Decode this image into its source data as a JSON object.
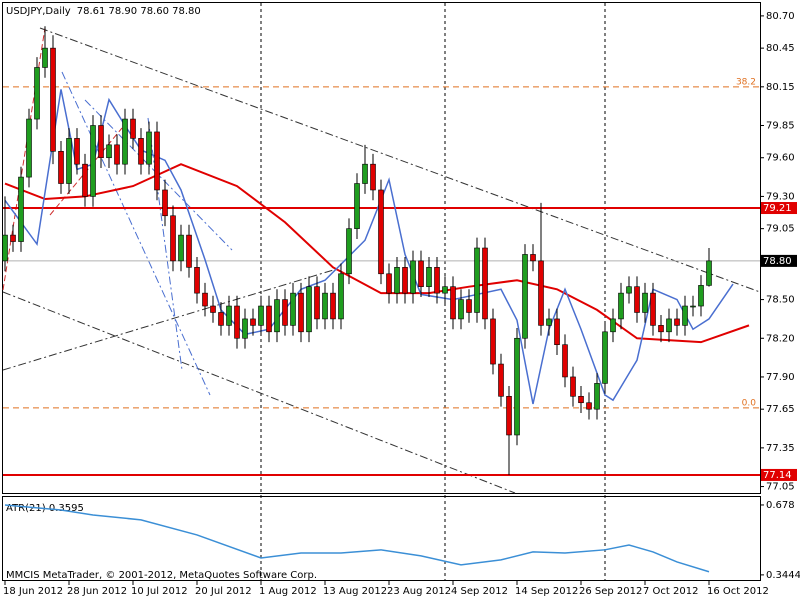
{
  "chart_data": {
    "type": "candlestick",
    "title": "USDJPY,Daily",
    "quote": "78.61 78.90 78.60 78.80",
    "footer": "MMCIS MetaTrader, © 2001-2012, MetaQuotes Software Corp.",
    "categories": [
      "18 Jun 2012",
      null,
      null,
      null,
      null,
      null,
      null,
      null,
      "28 Jun 2012",
      null,
      null,
      null,
      null,
      null,
      null,
      null,
      "10 Jul 2012",
      null,
      null,
      null,
      null,
      null,
      null,
      null,
      "20 Jul 2012",
      null,
      null,
      null,
      null,
      null,
      null,
      null,
      "1 Aug 2012",
      null,
      null,
      null,
      null,
      null,
      null,
      null,
      "13 Aug 2012",
      null,
      null,
      null,
      null,
      null,
      null,
      null,
      "23 Aug 2012",
      null,
      null,
      null,
      null,
      null,
      null,
      null,
      "4 Sep 2012",
      null,
      null,
      null,
      null,
      null,
      null,
      null,
      "14 Sep 2012",
      null,
      null,
      null,
      null,
      null,
      null,
      null,
      "26 Sep 2012",
      null,
      null,
      null,
      null,
      null,
      null,
      null,
      "7 Oct 2012",
      null,
      null,
      null,
      null,
      null,
      null,
      null,
      "16 Oct 2012"
    ],
    "open": [
      78.8,
      79.0,
      78.95,
      79.45,
      79.9,
      80.3,
      80.45,
      79.65,
      79.4,
      79.75,
      79.55,
      79.3,
      79.85,
      79.6,
      79.7,
      79.55,
      79.9,
      79.75,
      79.55,
      79.8,
      79.35,
      79.15,
      78.8,
      79.0,
      78.75,
      78.55,
      78.45,
      78.4,
      78.3,
      78.45,
      78.2,
      78.35,
      78.3,
      78.45,
      78.25,
      78.5,
      78.3,
      78.55,
      78.25,
      78.6,
      78.35,
      78.55,
      78.35,
      78.7,
      79.05,
      79.4,
      79.55,
      79.35,
      78.7,
      78.55,
      78.75,
      78.55,
      78.8,
      78.6,
      78.75,
      78.55,
      78.6,
      78.35,
      78.5,
      78.4,
      78.9,
      78.35,
      78.0,
      77.75,
      77.45,
      78.2,
      78.85,
      78.8,
      78.3,
      78.35,
      78.15,
      77.9,
      77.75,
      77.7,
      77.65,
      77.85,
      78.25,
      78.35,
      78.55,
      78.6,
      78.4,
      78.55,
      78.3,
      78.25,
      78.35,
      78.3,
      78.45,
      78.45,
      78.61
    ],
    "high": [
      79.3,
      79.08,
      79.53,
      79.98,
      80.38,
      80.62,
      80.55,
      79.73,
      79.83,
      79.83,
      79.63,
      79.93,
      79.93,
      79.78,
      79.78,
      79.98,
      79.98,
      79.83,
      79.88,
      79.88,
      79.43,
      79.23,
      79.08,
      79.08,
      78.83,
      78.63,
      78.53,
      78.48,
      78.53,
      78.53,
      78.43,
      78.43,
      78.53,
      78.53,
      78.58,
      78.58,
      78.63,
      78.63,
      78.68,
      78.68,
      78.63,
      78.63,
      78.78,
      79.13,
      79.48,
      79.7,
      79.63,
      79.43,
      78.78,
      78.83,
      78.83,
      78.88,
      78.88,
      78.83,
      78.83,
      78.68,
      78.68,
      78.58,
      78.58,
      78.98,
      78.98,
      78.43,
      78.08,
      77.83,
      78.28,
      78.93,
      78.93,
      79.25,
      78.43,
      78.43,
      78.23,
      77.98,
      77.83,
      77.78,
      77.93,
      78.33,
      78.43,
      78.63,
      78.68,
      78.68,
      78.63,
      78.63,
      78.38,
      78.43,
      78.43,
      78.53,
      78.53,
      78.69,
      78.9
    ],
    "low": [
      78.72,
      78.87,
      78.87,
      79.37,
      79.82,
      80.22,
      79.55,
      79.32,
      79.32,
      79.47,
      79.22,
      79.22,
      79.52,
      79.52,
      79.47,
      79.47,
      79.67,
      79.47,
      79.47,
      79.27,
      79.07,
      78.72,
      78.72,
      78.67,
      78.47,
      78.37,
      78.32,
      78.22,
      78.22,
      78.12,
      78.12,
      78.22,
      78.22,
      78.17,
      78.17,
      78.22,
      78.22,
      78.17,
      78.17,
      78.27,
      78.27,
      78.27,
      78.27,
      78.62,
      78.97,
      79.32,
      79.27,
      78.62,
      78.47,
      78.47,
      78.47,
      78.47,
      78.52,
      78.52,
      78.47,
      78.47,
      78.27,
      78.27,
      78.32,
      78.32,
      78.27,
      77.92,
      77.67,
      77.14,
      77.37,
      78.12,
      78.72,
      78.22,
      78.22,
      78.07,
      77.82,
      77.67,
      77.62,
      77.57,
      77.57,
      77.77,
      78.17,
      78.27,
      78.47,
      78.32,
      78.32,
      78.22,
      78.17,
      78.17,
      78.22,
      78.22,
      78.37,
      78.37,
      78.6
    ],
    "close": [
      79.0,
      78.95,
      79.45,
      79.9,
      80.3,
      80.45,
      79.65,
      79.4,
      79.75,
      79.55,
      79.3,
      79.85,
      79.6,
      79.7,
      79.55,
      79.9,
      79.75,
      79.55,
      79.8,
      79.35,
      79.15,
      78.8,
      79.0,
      78.75,
      78.55,
      78.45,
      78.4,
      78.3,
      78.45,
      78.2,
      78.35,
      78.3,
      78.45,
      78.25,
      78.5,
      78.3,
      78.55,
      78.25,
      78.6,
      78.35,
      78.55,
      78.35,
      78.7,
      79.05,
      79.4,
      79.55,
      79.35,
      78.7,
      78.55,
      78.75,
      78.55,
      78.8,
      78.6,
      78.75,
      78.55,
      78.6,
      78.35,
      78.5,
      78.4,
      78.9,
      78.35,
      78.0,
      77.75,
      77.45,
      78.2,
      78.85,
      78.8,
      78.3,
      78.35,
      78.15,
      77.9,
      77.75,
      77.7,
      77.65,
      77.85,
      78.25,
      78.35,
      78.55,
      78.6,
      78.4,
      78.55,
      78.3,
      78.25,
      78.35,
      78.3,
      78.45,
      78.45,
      78.61,
      78.8
    ],
    "up_color": "#1f9d1f",
    "down_color": "#e00000",
    "ylim": [
      77.0,
      80.8
    ],
    "yticks": [
      {
        "value": 80.7,
        "label": "80.70"
      },
      80.45,
      80.15,
      79.85,
      {
        "value": 79.6,
        "label": "79.60"
      },
      {
        "value": 79.3,
        "label": "79.30"
      },
      79.05,
      {
        "value": 78.5,
        "label": "78.50"
      },
      {
        "value": 78.2,
        "label": "78.20"
      },
      {
        "value": 77.9,
        "label": "77.90"
      },
      77.65,
      77.35,
      77.05
    ],
    "bid": {
      "value": 78.8,
      "label": "78.80"
    },
    "lines": [
      {
        "value": 79.21,
        "color": "#e00000"
      },
      {
        "value": 77.14,
        "color": "#e00000"
      }
    ],
    "fib": [
      {
        "label": "38.2",
        "value": 80.15,
        "color": "#e07020"
      },
      {
        "label": "0.0",
        "value": 77.66,
        "color": "#e07020"
      }
    ],
    "indicators": [
      {
        "color": "#e00000",
        "width": 2,
        "x": [
          0,
          5,
          10,
          16,
          22,
          29,
          35,
          41,
          47,
          53,
          58,
          64,
          69,
          74,
          79,
          87,
          93
        ],
        "values": [
          79.4,
          79.28,
          79.3,
          79.38,
          79.55,
          79.38,
          79.1,
          78.75,
          78.55,
          78.55,
          78.6,
          78.65,
          78.58,
          78.42,
          78.2,
          78.17,
          78.3
        ]
      },
      {
        "color": "#4a6fd0",
        "width": 1.5,
        "x": [
          0,
          4,
          7,
          9,
          11,
          13,
          15,
          17,
          20,
          22,
          25,
          27,
          30,
          33,
          37,
          40,
          45,
          48,
          50,
          52,
          56,
          59,
          62,
          64,
          66,
          68,
          70,
          72,
          75,
          76,
          79,
          81,
          84,
          86,
          88,
          91
        ],
        "values": [
          79.27,
          78.93,
          80.13,
          79.51,
          79.55,
          80.05,
          79.85,
          79.66,
          79.58,
          79.35,
          78.81,
          78.42,
          78.23,
          78.27,
          78.58,
          78.65,
          78.96,
          79.43,
          78.85,
          78.54,
          78.5,
          78.54,
          78.58,
          78.34,
          77.69,
          78.27,
          78.58,
          78.27,
          77.76,
          77.72,
          78.03,
          78.58,
          78.5,
          78.27,
          78.35,
          78.62
        ]
      }
    ],
    "atr": {
      "title": "ATR(21) 0.3595",
      "color": "#3b8fd6",
      "x": [
        0,
        7,
        11,
        17,
        24,
        32,
        37,
        42,
        47,
        52,
        57,
        62,
        66,
        70,
        75,
        78,
        81,
        84,
        88
      ],
      "values": [
        0.678,
        0.654,
        0.63,
        0.607,
        0.535,
        0.425,
        0.449,
        0.449,
        0.464,
        0.435,
        0.392,
        0.416,
        0.454,
        0.449,
        0.464,
        0.487,
        0.454,
        0.406,
        0.3595
      ],
      "ylim": [
        0.32,
        0.716
      ],
      "yticks": [
        0.678,
        0.3444
      ]
    }
  }
}
